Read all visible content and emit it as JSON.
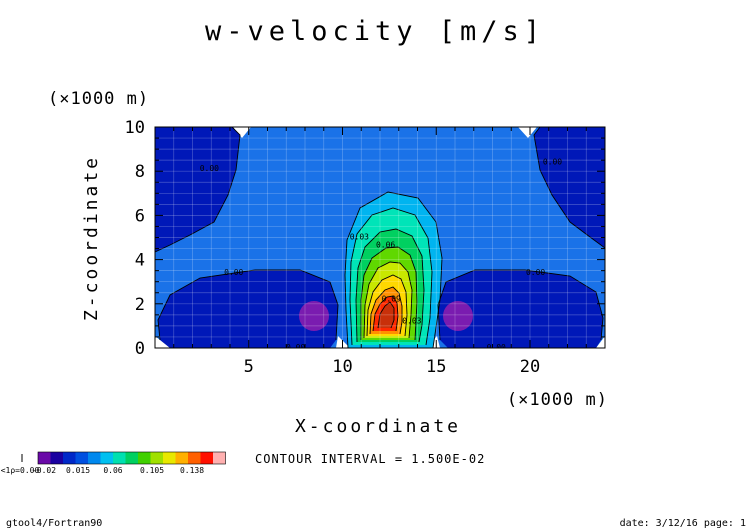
{
  "chart_data": {
    "type": "contour",
    "title": "w-velocity [m/s]",
    "xlabel": "X-coordinate",
    "ylabel": "Z-coordinate",
    "x_unit": "(×1000 m)",
    "y_unit": "(×1000 m)",
    "xlim": [
      0,
      24
    ],
    "ylim": [
      0,
      10
    ],
    "x_ticks": [
      5,
      10,
      15,
      20
    ],
    "x_tick_labels": [
      "5",
      "10",
      "15",
      "20"
    ],
    "y_ticks": [
      0,
      2,
      4,
      6,
      8,
      10
    ],
    "y_tick_labels": [
      "0",
      "2",
      "4",
      "6",
      "8",
      "10"
    ],
    "grid": true,
    "contour_interval_text": "CONTOUR INTERVAL = 1.500E-02",
    "contour_labels": [
      {
        "text": "0.03",
        "x": 10.9,
        "y": 4.9
      },
      {
        "text": "0.06",
        "x": 12.3,
        "y": 4.55
      },
      {
        "text": "0.09",
        "x": 12.6,
        "y": 2.1
      },
      {
        "text": "0.03",
        "x": 13.7,
        "y": 1.1
      },
      {
        "text": "0.00",
        "x": 2.9,
        "y": 8.0
      },
      {
        "text": "0.00",
        "x": 21.2,
        "y": 8.3
      },
      {
        "text": "0.00",
        "x": 4.2,
        "y": 3.3
      },
      {
        "text": "0.00",
        "x": 20.3,
        "y": 3.3
      },
      {
        "text": "0.00",
        "x": 7.5,
        "y": -0.1
      },
      {
        "text": "0.00",
        "x": 18.2,
        "y": -0.1
      }
    ],
    "colorbar": {
      "colors": [
        "#6a0aa8",
        "#1a00a0",
        "#0028c8",
        "#0050e0",
        "#0088ee",
        "#00c0f0",
        "#00e0b0",
        "#00d060",
        "#40d000",
        "#a0e000",
        "#e8e800",
        "#ffb000",
        "#ff6000",
        "#ff1000",
        "#ffb0b0"
      ],
      "labels": [
        "<1ρ=0.00",
        "-0.02",
        "0.015",
        "0.06",
        "0.105",
        "0.138"
      ]
    }
  },
  "footer": {
    "left": "gtool4/Fortran90",
    "right": "date: 3/12/16 page: 1"
  }
}
